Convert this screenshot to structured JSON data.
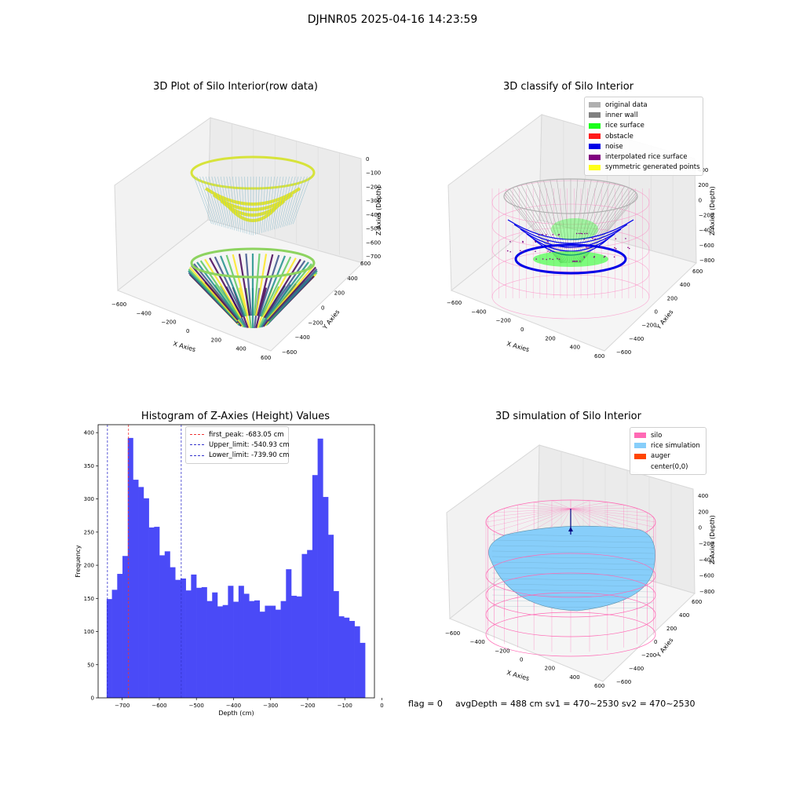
{
  "figure": {
    "suptitle": "DJHNR05 2025-04-16 14:23:59",
    "status_flag": "flag = 0",
    "status_metrics": "avgDepth = 488 cm  sv1 = 470~2530  sv2 = 470~2530"
  },
  "colors": {
    "histogram_bar": "#4a4af7",
    "first_peak_line": "#e33",
    "limit_lines": "#3333cc",
    "silo": "#ff69b4",
    "rice_simulation": "#87cefa",
    "auger": "#ff4500",
    "original_data": "#b0b0b0",
    "inner_wall": "#808080",
    "rice_surface": "#1aff1a",
    "obstacle": "#ff1a1a",
    "noise": "#0000e6",
    "interpolated": "#800080",
    "symmetric": "#ffff1a"
  },
  "chart_data": [
    {
      "type": "scatter",
      "projection": "3d",
      "title": "3D Plot of Silo Interior(row data)",
      "xlabel": "X Axies",
      "ylabel": "Y Axies",
      "zlabel": "Z Axies (Depth)",
      "x_ticks": [
        "−600",
        "−400",
        "−200",
        "0",
        "200",
        "400",
        "600"
      ],
      "y_ticks": [
        "−600",
        "−400",
        "−200",
        "0",
        "200",
        "400",
        "600"
      ],
      "z_ticks": [
        "0",
        "−100",
        "−200",
        "−300",
        "−400",
        "−500",
        "−600",
        "−700"
      ],
      "colormap": "viridis"
    },
    {
      "type": "scatter",
      "projection": "3d",
      "title": "3D classify of Silo Interior",
      "xlabel": "X Axies",
      "ylabel": "Y Axies",
      "zlabel": "Z Axies (Depth)",
      "x_ticks": [
        "−600",
        "−400",
        "−200",
        "0",
        "200",
        "400",
        "600"
      ],
      "y_ticks": [
        "−600",
        "−400",
        "−200",
        "0",
        "200",
        "400",
        "600"
      ],
      "z_ticks": [
        "400",
        "200",
        "0",
        "−200",
        "−400",
        "−600",
        "−800"
      ],
      "legend": [
        "original data",
        "inner wall",
        "rice surface",
        "obstacle",
        "noise",
        "interpolated rice surface",
        "symmetric generated points"
      ],
      "legend_position": "upper right"
    },
    {
      "type": "bar",
      "title": "Histogram of Z-Axies (Height) Values",
      "xlabel": "Depth (cm)",
      "ylabel": "Frequency",
      "xlim": [
        -765,
        -20
      ],
      "ylim": [
        0,
        412
      ],
      "x_ticks": [
        "−700",
        "−600",
        "−500",
        "−400",
        "−300",
        "−200",
        "−100",
        "0"
      ],
      "y_ticks": [
        "0",
        "50",
        "100",
        "150",
        "200",
        "250",
        "300",
        "350",
        "400"
      ],
      "bin_start": -742,
      "bin_width": 14.22,
      "values": [
        149,
        163,
        187,
        214,
        392,
        329,
        318,
        301,
        257,
        258,
        215,
        221,
        197,
        178,
        180,
        162,
        186,
        166,
        167,
        146,
        159,
        138,
        140,
        169,
        145,
        169,
        157,
        146,
        147,
        130,
        139,
        139,
        133,
        146,
        194,
        154,
        153,
        217,
        223,
        336,
        391,
        303,
        246,
        161,
        123,
        121,
        116,
        108,
        83
      ],
      "lines": [
        {
          "label": "first_peak: -683.05 cm",
          "x": -683.05,
          "style": "dashed"
        },
        {
          "label": "Upper_limit: -540.93 cm",
          "x": -540.93,
          "style": "dashed"
        },
        {
          "label": "Lower_limit: -739.90 cm",
          "x": -739.9,
          "style": "dashed"
        }
      ],
      "legend_position": "upper center"
    },
    {
      "type": "surface",
      "projection": "3d",
      "title": "3D simulation of Silo Interior",
      "xlabel": "X Axies",
      "ylabel": "Y Axies",
      "zlabel": "Z Axies (Depth)",
      "x_ticks": [
        "−600",
        "−400",
        "−200",
        "0",
        "200",
        "400",
        "600"
      ],
      "y_ticks": [
        "−600",
        "−400",
        "−200",
        "0",
        "200",
        "400",
        "600"
      ],
      "z_ticks": [
        "400",
        "200",
        "0",
        "−200",
        "−400",
        "−600",
        "−800"
      ],
      "legend": [
        "silo",
        "rice simulation",
        "auger",
        "center(0,0)"
      ],
      "legend_position": "upper right"
    }
  ]
}
